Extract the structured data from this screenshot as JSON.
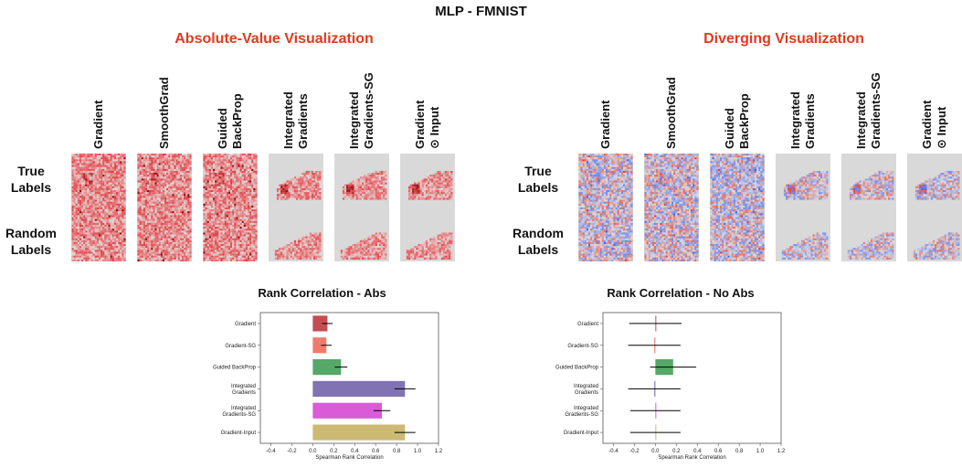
{
  "title": "MLP - FMNIST",
  "panels": [
    {
      "heading": "Absolute-Value Visualization",
      "columns": [
        "Gradient",
        "SmoothGrad",
        "Guided\nBackProp",
        "Integrated\nGradients",
        "Integrated\nGradients-SG",
        "Gradient\n⊙ Input"
      ],
      "rows": [
        "True\nLabels",
        "Random\nLabels"
      ],
      "colormap": "reds"
    },
    {
      "heading": "Diverging Visualization",
      "columns": [
        "Gradient",
        "SmoothGrad",
        "Guided\nBackProp",
        "Integrated\nGradients",
        "Integrated\nGradients-SG",
        "Gradient\n⊙ Input"
      ],
      "rows": [
        "True\nLabels",
        "Random\nLabels"
      ],
      "colormap": "diverging blue-red"
    }
  ],
  "colors": {
    "heading": "#e23a1a",
    "map_background": "#d9d9d9"
  },
  "chart_data": [
    {
      "type": "bar",
      "orientation": "horizontal",
      "title": "Rank Correlation - Abs",
      "xlabel": "Spearman Rank Correlation",
      "xlim": [
        -0.5,
        1.2
      ],
      "xticks": [
        "-0.4",
        "-0.2",
        "0.0",
        "0.2",
        "0.4",
        "0.6",
        "0.8",
        "1.0",
        "1.2"
      ],
      "categories": [
        "Gradient",
        "Gradient-SG",
        "Guided BackProp",
        "Integrated\nGradients",
        "Integrated\nGradients-SG",
        "Gradient-Input"
      ],
      "values": [
        0.14,
        0.13,
        0.27,
        0.88,
        0.66,
        0.88
      ],
      "errors": [
        0.05,
        0.05,
        0.06,
        0.1,
        0.08,
        0.1
      ],
      "colors": [
        "#c44e52",
        "#f07b6b",
        "#55a868",
        "#8172b2",
        "#da5bd8",
        "#ccb974"
      ]
    },
    {
      "type": "bar",
      "orientation": "horizontal",
      "title": "Rank Correlation - No Abs",
      "xlabel": "Spearman Rank Correlation",
      "xlim": [
        -0.5,
        1.2
      ],
      "xticks": [
        "-0.4",
        "-0.2",
        "0.0",
        "0.2",
        "0.4",
        "0.6",
        "0.8",
        "1.0",
        "1.2"
      ],
      "categories": [
        "Gradient",
        "Gradient-SG",
        "Guided BackProp",
        "Integrated\nGradients",
        "Integrated\nGradients-SG",
        "Gradient-Input"
      ],
      "values": [
        0.0,
        -0.01,
        0.17,
        -0.01,
        0.0,
        0.0
      ],
      "errors": [
        0.25,
        0.25,
        0.22,
        0.25,
        0.24,
        0.24
      ],
      "colors": [
        "#c44e52",
        "#f07b6b",
        "#55a868",
        "#8172b2",
        "#da5bd8",
        "#ccb974"
      ]
    }
  ]
}
